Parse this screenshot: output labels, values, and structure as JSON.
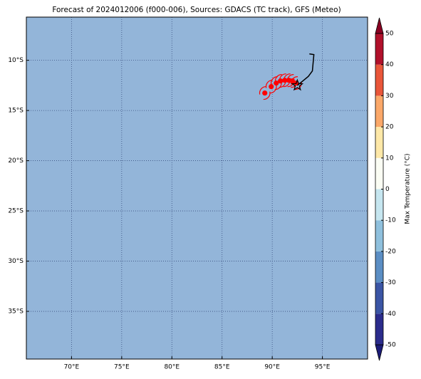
{
  "chart_data": {
    "type": "map",
    "title": "Forecast of 2024012006 (f000-006), Sources: GDACS (TC track), GFS (Meteo)",
    "background_color": "#93b5d9",
    "grid": true,
    "xlim": [
      65.5,
      99.5
    ],
    "ylim": [
      -39.75,
      -5.7
    ],
    "xticks": [
      {
        "value": 70,
        "label": "70°E"
      },
      {
        "value": 75,
        "label": "75°E"
      },
      {
        "value": 80,
        "label": "80°E"
      },
      {
        "value": 85,
        "label": "85°E"
      },
      {
        "value": 90,
        "label": "90°E"
      },
      {
        "value": 95,
        "label": "95°E"
      }
    ],
    "yticks": [
      {
        "value": -10,
        "label": "10°S"
      },
      {
        "value": -15,
        "label": "15°S"
      },
      {
        "value": -20,
        "label": "20°S"
      },
      {
        "value": -25,
        "label": "25°S"
      },
      {
        "value": -30,
        "label": "30°S"
      },
      {
        "value": -35,
        "label": "35°S"
      }
    ],
    "track": {
      "color": "#000000",
      "lon": [
        93.7,
        94.15,
        94.0,
        93.6,
        93.0,
        92.5
      ],
      "lat": [
        -9.36,
        -9.43,
        -11.06,
        -11.6,
        -12.1,
        -12.5
      ]
    },
    "current_position": {
      "lon": 92.5,
      "lat": -12.5
    },
    "forecast": {
      "color": "#ff0000",
      "lon": [
        89.26,
        89.9,
        90.4,
        90.82,
        91.25,
        91.67,
        92.0,
        92.4
      ],
      "lat": [
        -13.26,
        -12.62,
        -12.27,
        -12.06,
        -11.99,
        -11.99,
        -12.06,
        -12.27
      ]
    },
    "colorbar": {
      "label": "Max Temperature (°C)",
      "lim": [
        -50,
        50
      ],
      "ticks": [
        -50,
        -40,
        -30,
        -20,
        -10,
        0,
        10,
        20,
        30,
        40,
        50
      ],
      "colors": [
        "#2b2c8c",
        "#3b55a5",
        "#5b8ec4",
        "#8fc0dd",
        "#c6e6f0",
        "#fbfdf4",
        "#fee8a8",
        "#fba869",
        "#e9563a",
        "#b1112b"
      ],
      "under_color": "#1c1c78",
      "over_color": "#8a0022"
    }
  }
}
